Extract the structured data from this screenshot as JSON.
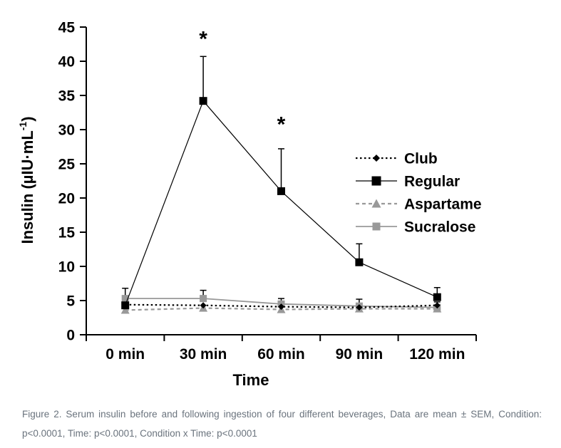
{
  "caption": {
    "line1": "Figure 2. Serum insulin before and following ingestion of four different beverages, Data are mean ± SEM, Condition:",
    "line2": "p<0.0001, Time: p<0.0001, Condition x Time: p<0.0001"
  },
  "chart_data": {
    "type": "line",
    "title": "",
    "xlabel": "Time",
    "ylabel": {
      "pre": "Insulin (µIU·mL",
      "sup": "-1",
      "post": ")"
    },
    "categories": [
      "0 min",
      "30 min",
      "60 min",
      "90 min",
      "120 min"
    ],
    "ylim": [
      0,
      45
    ],
    "yticks": [
      0,
      5,
      10,
      15,
      20,
      25,
      30,
      35,
      40,
      45
    ],
    "grid": false,
    "legend_position": "inside-right",
    "series": [
      {
        "name": "Club",
        "marker": "diamond",
        "color": "#000000",
        "line_style": "dotted",
        "values": [
          4.4,
          4.3,
          4.1,
          4.0,
          4.3
        ],
        "sem": [
          0,
          0,
          0,
          0,
          0
        ]
      },
      {
        "name": "Regular",
        "marker": "square",
        "color": "#000000",
        "line_style": "solid",
        "values": [
          4.3,
          34.2,
          21.0,
          10.6,
          5.5
        ],
        "sem": [
          0,
          6.5,
          6.2,
          2.7,
          1.4
        ]
      },
      {
        "name": "Aspartame",
        "marker": "triangle",
        "color": "#999999",
        "line_style": "dashed",
        "values": [
          3.6,
          3.9,
          3.7,
          3.8,
          3.8
        ],
        "sem": [
          0,
          0,
          0,
          0,
          0
        ]
      },
      {
        "name": "Sucralose",
        "marker": "square",
        "color": "#999999",
        "line_style": "solid",
        "values": [
          5.3,
          5.3,
          4.5,
          4.2,
          4.0
        ],
        "sem": [
          1.5,
          1.2,
          0.8,
          1.0,
          0.8
        ]
      }
    ],
    "annotations": [
      {
        "text": "*",
        "category_index": 1,
        "y": 43.5
      },
      {
        "text": "*",
        "category_index": 2,
        "y": 31.0
      }
    ]
  }
}
